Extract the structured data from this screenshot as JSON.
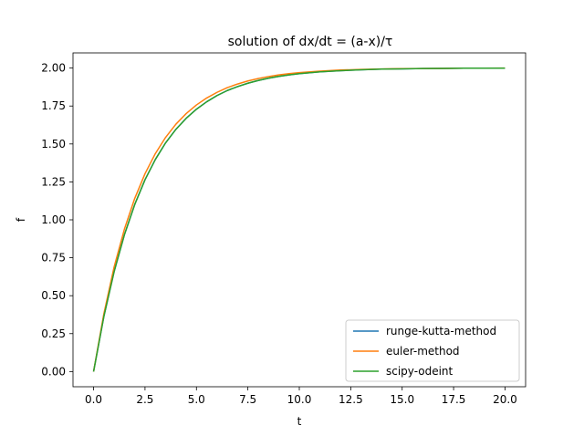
{
  "chart_data": {
    "type": "line",
    "title": "solution of dx/dt = (a-x)/τ",
    "xlabel": "t",
    "ylabel": "f",
    "xlim": [
      -1.0,
      21.0
    ],
    "ylim": [
      -0.1,
      2.1
    ],
    "xticks": [
      0.0,
      2.5,
      5.0,
      7.5,
      10.0,
      12.5,
      15.0,
      17.5,
      20.0
    ],
    "xtick_labels": [
      "0.0",
      "2.5",
      "5.0",
      "7.5",
      "10.0",
      "12.5",
      "15.0",
      "17.5",
      "20.0"
    ],
    "yticks": [
      0.0,
      0.25,
      0.5,
      0.75,
      1.0,
      1.25,
      1.5,
      1.75,
      2.0
    ],
    "ytick_labels": [
      "0.00",
      "0.25",
      "0.50",
      "0.75",
      "1.00",
      "1.25",
      "1.50",
      "1.75",
      "2.00"
    ],
    "grid": false,
    "legend_position": "lower-right",
    "x": [
      0,
      0.5,
      1,
      1.5,
      2,
      2.5,
      3,
      3.5,
      4,
      4.5,
      5,
      5.5,
      6,
      6.5,
      7,
      7.5,
      8,
      8.5,
      9,
      9.5,
      10,
      11,
      12,
      13,
      14,
      15,
      16,
      17,
      18,
      19,
      20
    ],
    "series": [
      {
        "name": "runge-kutta-method",
        "color": "#1f77b4",
        "values": [
          0.0,
          0.363,
          0.659,
          0.902,
          1.101,
          1.264,
          1.397,
          1.507,
          1.596,
          1.669,
          1.729,
          1.778,
          1.819,
          1.852,
          1.878,
          1.9,
          1.918,
          1.933,
          1.945,
          1.955,
          1.963,
          1.975,
          1.983,
          1.989,
          1.993,
          1.995,
          1.997,
          1.998,
          1.999,
          1.999,
          1.999
        ]
      },
      {
        "name": "euler-method",
        "color": "#ff7f0e",
        "values": [
          0.0,
          0.381,
          0.69,
          0.939,
          1.141,
          1.304,
          1.436,
          1.543,
          1.63,
          1.7,
          1.757,
          1.803,
          1.84,
          1.871,
          1.895,
          1.915,
          1.931,
          1.944,
          1.955,
          1.963,
          1.97,
          1.98,
          1.987,
          1.991,
          1.994,
          1.996,
          1.997,
          1.998,
          1.999,
          1.999,
          2.0
        ]
      },
      {
        "name": "scipy-odeint",
        "color": "#2ca02c",
        "values": [
          0.0,
          0.363,
          0.659,
          0.902,
          1.101,
          1.264,
          1.397,
          1.507,
          1.596,
          1.669,
          1.729,
          1.778,
          1.819,
          1.852,
          1.878,
          1.9,
          1.918,
          1.933,
          1.945,
          1.955,
          1.963,
          1.975,
          1.983,
          1.989,
          1.993,
          1.995,
          1.997,
          1.998,
          1.999,
          1.999,
          1.999
        ]
      }
    ]
  }
}
